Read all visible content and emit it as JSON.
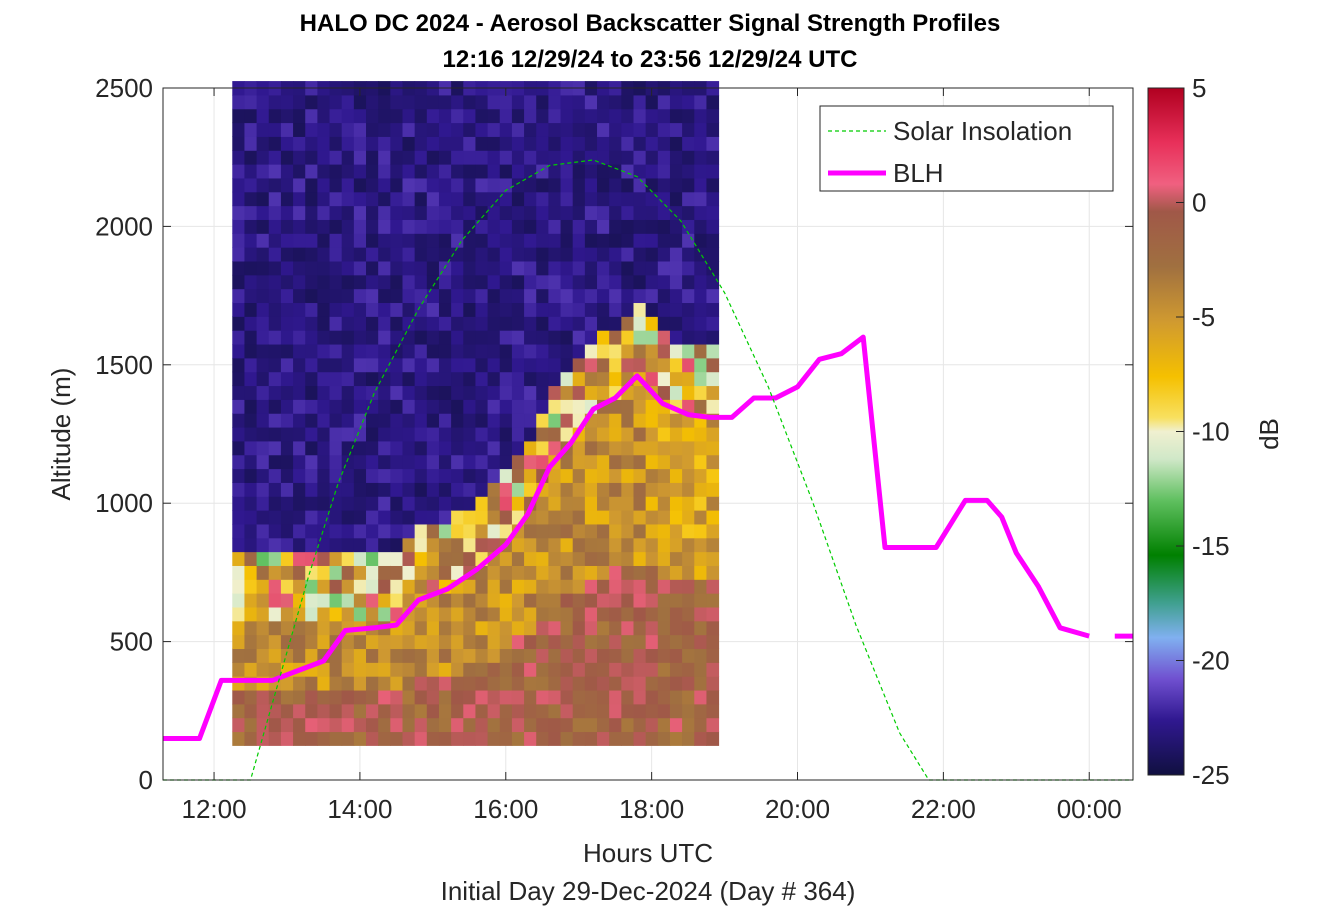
{
  "title": "HALO DC 2024 - Aerosol Backscatter Signal Strength Profiles",
  "subtitle": "12:16 12/29/24 to 23:56 12/29/24  UTC",
  "footer": "Initial Day 29-Dec-2024 (Day # 364)",
  "chart_data": {
    "type": "heatmap",
    "title": "HALO DC 2024 - Aerosol Backscatter Signal Strength Profiles",
    "subtitle": "12:16 12/29/24 to 23:56 12/29/24  UTC",
    "xlabel": "Hours UTC",
    "ylabel": "Altitude (m)",
    "xlim": [
      11.3,
      24.6
    ],
    "ylim": [
      0,
      2500
    ],
    "x_ticks": [
      12,
      14,
      16,
      18,
      20,
      22,
      24
    ],
    "x_tick_labels": [
      "12:00",
      "14:00",
      "16:00",
      "18:00",
      "20:00",
      "22:00",
      "00:00"
    ],
    "y_ticks": [
      0,
      500,
      1000,
      1500,
      2000,
      2500
    ],
    "y_tick_labels": [
      "0",
      "500",
      "1000",
      "1500",
      "2000",
      "2500"
    ],
    "colorbar": {
      "label": "dB",
      "range": [
        -25,
        5
      ],
      "ticks": [
        5,
        0,
        -5,
        -10,
        -15,
        -20,
        -25
      ],
      "tick_labels": [
        "5",
        "0",
        "-5",
        "-10",
        "-15",
        "-20",
        "-25"
      ]
    },
    "grid": true,
    "legend": {
      "placement": "top-right",
      "entries": [
        "Solar Insolation",
        "BLH"
      ]
    },
    "series": [
      {
        "name": "BLH",
        "color": "#ff00ff",
        "style": "solid",
        "x": [
          11.3,
          11.8,
          12.1,
          12.8,
          13.1,
          13.5,
          13.8,
          14.2,
          14.5,
          14.8,
          15.2,
          15.6,
          16.0,
          16.3,
          16.6,
          16.9,
          17.2,
          17.5,
          17.8,
          18.15,
          18.5,
          18.8,
          19.1,
          19.4,
          19.7,
          20.0,
          20.3,
          20.6,
          20.9,
          21.2,
          21.5,
          21.9,
          22.3,
          22.6,
          22.8,
          23.0,
          23.3,
          23.6,
          24.0
        ],
        "y": [
          150,
          150,
          360,
          360,
          390,
          430,
          540,
          550,
          560,
          650,
          690,
          760,
          850,
          960,
          1130,
          1220,
          1340,
          1380,
          1460,
          1360,
          1320,
          1310,
          1310,
          1380,
          1380,
          1420,
          1520,
          1540,
          1600,
          840,
          840,
          840,
          1010,
          1010,
          950,
          820,
          700,
          550,
          520
        ]
      },
      {
        "name": "Solar Insolation",
        "color": "#00cc00",
        "style": "dashed",
        "x": [
          11.3,
          12.5,
          12.9,
          13.3,
          13.7,
          14.2,
          14.8,
          15.4,
          16.0,
          16.6,
          17.2,
          17.8,
          18.4,
          19.0,
          19.6,
          20.2,
          20.8,
          21.4,
          21.8,
          24.6
        ],
        "y": [
          0,
          0,
          370,
          740,
          1070,
          1400,
          1700,
          1950,
          2130,
          2220,
          2240,
          2180,
          2020,
          1760,
          1420,
          1010,
          560,
          170,
          0,
          0
        ]
      }
    ],
    "heatmap": {
      "x_start": 12.25,
      "x_step": 0.1667,
      "y_start": 125,
      "y_step": 50,
      "columns": 40,
      "rows": 48,
      "description_of_values_in_dB": "strong signal (~ -5 to 5 dB) below boundary layer, weak (-25 to -20 dB) above"
    }
  }
}
